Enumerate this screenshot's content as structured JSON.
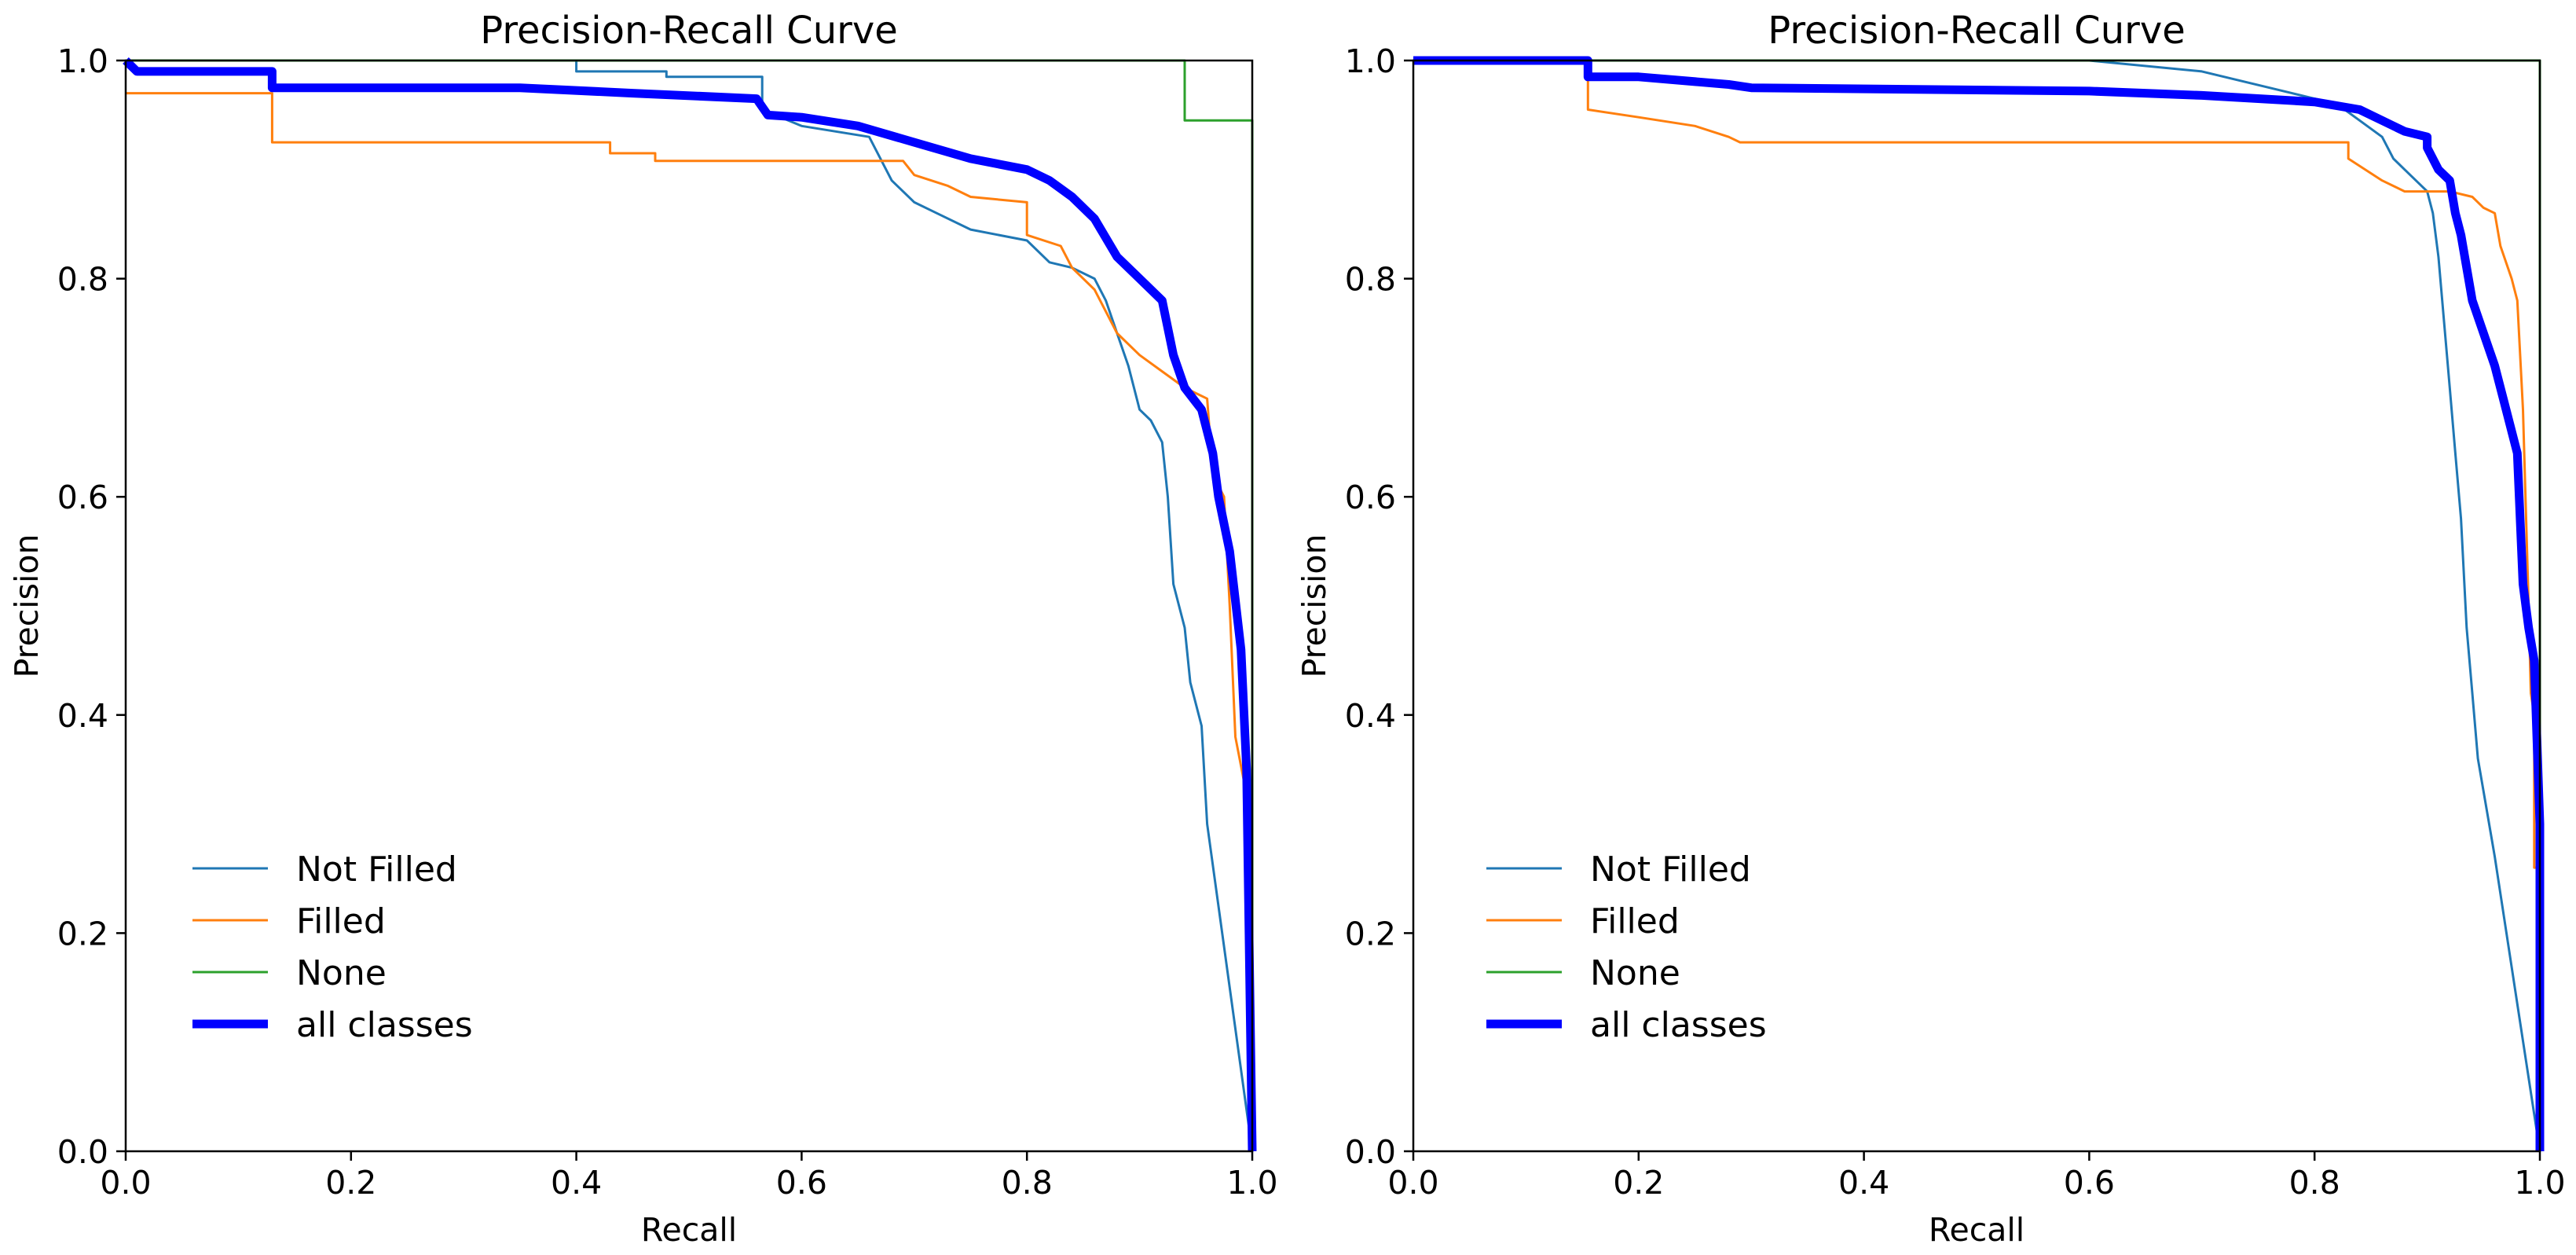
{
  "colors": {
    "not_filled": "#1f77b4",
    "filled": "#ff7f0e",
    "none": "#2ca02c",
    "all_classes": "#0000ff",
    "axes": "#000000",
    "background": "#ffffff"
  },
  "chart_data": [
    {
      "type": "line",
      "title": "Precision-Recall Curve",
      "xlabel": "Recall",
      "ylabel": "Precision",
      "xlim": [
        0,
        1
      ],
      "ylim": [
        0,
        1
      ],
      "xticks": [
        "0.0",
        "0.2",
        "0.4",
        "0.6",
        "0.8",
        "1.0"
      ],
      "yticks": [
        "0.0",
        "0.2",
        "0.4",
        "0.6",
        "0.8",
        "1.0"
      ],
      "grid": false,
      "legend_position": "lower-left",
      "series": [
        {
          "name": "Not Filled",
          "points": [
            [
              0.0,
              1.0
            ],
            [
              0.4,
              1.0
            ],
            [
              0.4,
              0.99
            ],
            [
              0.48,
              0.99
            ],
            [
              0.48,
              0.985
            ],
            [
              0.565,
              0.985
            ],
            [
              0.565,
              0.955
            ],
            [
              0.6,
              0.94
            ],
            [
              0.66,
              0.93
            ],
            [
              0.68,
              0.89
            ],
            [
              0.7,
              0.87
            ],
            [
              0.72,
              0.86
            ],
            [
              0.75,
              0.845
            ],
            [
              0.8,
              0.835
            ],
            [
              0.82,
              0.815
            ],
            [
              0.84,
              0.81
            ],
            [
              0.86,
              0.8
            ],
            [
              0.87,
              0.78
            ],
            [
              0.88,
              0.75
            ],
            [
              0.89,
              0.72
            ],
            [
              0.9,
              0.68
            ],
            [
              0.91,
              0.67
            ],
            [
              0.92,
              0.65
            ],
            [
              0.925,
              0.6
            ],
            [
              0.93,
              0.52
            ],
            [
              0.94,
              0.48
            ],
            [
              0.945,
              0.43
            ],
            [
              0.955,
              0.39
            ],
            [
              0.96,
              0.3
            ],
            [
              1.0,
              0.0
            ]
          ]
        },
        {
          "name": "Filled",
          "points": [
            [
              0.0,
              0.97
            ],
            [
              0.13,
              0.97
            ],
            [
              0.13,
              0.925
            ],
            [
              0.43,
              0.925
            ],
            [
              0.43,
              0.915
            ],
            [
              0.47,
              0.915
            ],
            [
              0.47,
              0.908
            ],
            [
              0.69,
              0.908
            ],
            [
              0.7,
              0.895
            ],
            [
              0.73,
              0.885
            ],
            [
              0.75,
              0.875
            ],
            [
              0.8,
              0.87
            ],
            [
              0.8,
              0.84
            ],
            [
              0.83,
              0.83
            ],
            [
              0.84,
              0.81
            ],
            [
              0.86,
              0.79
            ],
            [
              0.88,
              0.75
            ],
            [
              0.9,
              0.73
            ],
            [
              0.92,
              0.715
            ],
            [
              0.94,
              0.7
            ],
            [
              0.96,
              0.69
            ],
            [
              0.965,
              0.62
            ],
            [
              0.975,
              0.6
            ],
            [
              0.98,
              0.5
            ],
            [
              0.985,
              0.38
            ],
            [
              1.0,
              0.3
            ]
          ]
        },
        {
          "name": "None",
          "points": [
            [
              0.0,
              1.0
            ],
            [
              0.94,
              1.0
            ],
            [
              0.94,
              0.945
            ],
            [
              1.0,
              0.945
            ],
            [
              1.0,
              0.0
            ]
          ]
        },
        {
          "name": "all classes",
          "points": [
            [
              0.0,
              1.0
            ],
            [
              0.01,
              0.99
            ],
            [
              0.13,
              0.99
            ],
            [
              0.13,
              0.975
            ],
            [
              0.35,
              0.975
            ],
            [
              0.45,
              0.97
            ],
            [
              0.56,
              0.965
            ],
            [
              0.57,
              0.95
            ],
            [
              0.6,
              0.948
            ],
            [
              0.65,
              0.94
            ],
            [
              0.7,
              0.925
            ],
            [
              0.75,
              0.91
            ],
            [
              0.8,
              0.9
            ],
            [
              0.82,
              0.89
            ],
            [
              0.84,
              0.875
            ],
            [
              0.86,
              0.855
            ],
            [
              0.88,
              0.82
            ],
            [
              0.9,
              0.8
            ],
            [
              0.92,
              0.78
            ],
            [
              0.93,
              0.73
            ],
            [
              0.94,
              0.7
            ],
            [
              0.955,
              0.68
            ],
            [
              0.965,
              0.64
            ],
            [
              0.97,
              0.6
            ],
            [
              0.98,
              0.55
            ],
            [
              0.99,
              0.46
            ],
            [
              0.995,
              0.35
            ],
            [
              1.0,
              0.0
            ]
          ]
        }
      ]
    },
    {
      "type": "line",
      "title": "Precision-Recall Curve",
      "xlabel": "Recall",
      "ylabel": "Precision",
      "xlim": [
        0,
        1
      ],
      "ylim": [
        0,
        1
      ],
      "xticks": [
        "0.0",
        "0.2",
        "0.4",
        "0.6",
        "0.8",
        "1.0"
      ],
      "yticks": [
        "0.0",
        "0.2",
        "0.4",
        "0.6",
        "0.8",
        "1.0"
      ],
      "grid": false,
      "legend_position": "lower-left",
      "series": [
        {
          "name": "Not Filled",
          "points": [
            [
              0.0,
              1.0
            ],
            [
              0.6,
              1.0
            ],
            [
              0.7,
              0.99
            ],
            [
              0.78,
              0.97
            ],
            [
              0.82,
              0.96
            ],
            [
              0.84,
              0.945
            ],
            [
              0.86,
              0.93
            ],
            [
              0.87,
              0.91
            ],
            [
              0.88,
              0.9
            ],
            [
              0.9,
              0.88
            ],
            [
              0.905,
              0.86
            ],
            [
              0.91,
              0.82
            ],
            [
              0.915,
              0.76
            ],
            [
              0.92,
              0.7
            ],
            [
              0.925,
              0.64
            ],
            [
              0.93,
              0.58
            ],
            [
              0.935,
              0.48
            ],
            [
              0.94,
              0.42
            ],
            [
              0.945,
              0.36
            ],
            [
              0.95,
              0.33
            ],
            [
              0.96,
              0.27
            ],
            [
              1.0,
              0.0
            ]
          ]
        },
        {
          "name": "Filled",
          "points": [
            [
              0.0,
              1.0
            ],
            [
              0.155,
              1.0
            ],
            [
              0.155,
              0.955
            ],
            [
              0.2,
              0.948
            ],
            [
              0.25,
              0.94
            ],
            [
              0.28,
              0.93
            ],
            [
              0.29,
              0.925
            ],
            [
              0.83,
              0.925
            ],
            [
              0.83,
              0.91
            ],
            [
              0.86,
              0.89
            ],
            [
              0.88,
              0.88
            ],
            [
              0.92,
              0.88
            ],
            [
              0.94,
              0.875
            ],
            [
              0.95,
              0.865
            ],
            [
              0.96,
              0.86
            ],
            [
              0.965,
              0.83
            ],
            [
              0.975,
              0.8
            ],
            [
              0.98,
              0.78
            ],
            [
              0.985,
              0.68
            ],
            [
              0.99,
              0.5
            ],
            [
              0.992,
              0.42
            ],
            [
              0.995,
              0.4
            ],
            [
              0.995,
              0.26
            ],
            [
              1.0,
              0.26
            ]
          ]
        },
        {
          "name": "None",
          "points": [
            [
              0.0,
              1.0
            ],
            [
              1.0,
              1.0
            ],
            [
              1.0,
              0.0
            ]
          ]
        },
        {
          "name": "all classes",
          "points": [
            [
              0.0,
              1.0
            ],
            [
              0.155,
              1.0
            ],
            [
              0.155,
              0.985
            ],
            [
              0.2,
              0.985
            ],
            [
              0.28,
              0.978
            ],
            [
              0.3,
              0.975
            ],
            [
              0.6,
              0.972
            ],
            [
              0.7,
              0.968
            ],
            [
              0.8,
              0.962
            ],
            [
              0.84,
              0.955
            ],
            [
              0.86,
              0.945
            ],
            [
              0.88,
              0.935
            ],
            [
              0.9,
              0.93
            ],
            [
              0.9,
              0.92
            ],
            [
              0.91,
              0.9
            ],
            [
              0.92,
              0.89
            ],
            [
              0.925,
              0.86
            ],
            [
              0.93,
              0.84
            ],
            [
              0.935,
              0.81
            ],
            [
              0.94,
              0.78
            ],
            [
              0.95,
              0.75
            ],
            [
              0.96,
              0.72
            ],
            [
              0.97,
              0.68
            ],
            [
              0.98,
              0.64
            ],
            [
              0.985,
              0.52
            ],
            [
              0.99,
              0.48
            ],
            [
              0.995,
              0.45
            ],
            [
              1.0,
              0.3
            ],
            [
              1.0,
              0.0
            ]
          ]
        }
      ]
    }
  ]
}
